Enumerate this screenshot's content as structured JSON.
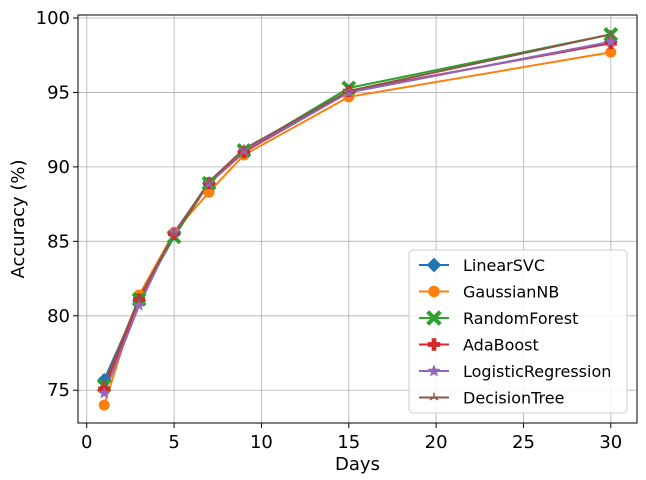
{
  "chart_data": {
    "type": "line",
    "xlabel": "Days",
    "ylabel": "Accuracy (%)",
    "xlim": [
      -0.5,
      31.5
    ],
    "ylim": [
      72.8,
      100.2
    ],
    "xticks": [
      0,
      5,
      10,
      15,
      20,
      25,
      30
    ],
    "yticks": [
      75,
      80,
      85,
      90,
      95,
      100
    ],
    "grid": true,
    "legend_position": "lower-right",
    "x": [
      1,
      3,
      5,
      7,
      9,
      15,
      30
    ],
    "series": [
      {
        "name": "LinearSVC",
        "color": "#1f77b4",
        "marker": "diamond",
        "values": [
          75.7,
          81.0,
          85.5,
          88.9,
          91.0,
          95.0,
          98.4
        ]
      },
      {
        "name": "GaussianNB",
        "color": "#ff7f0e",
        "marker": "circle",
        "values": [
          74.0,
          81.4,
          85.6,
          88.3,
          90.8,
          94.7,
          97.7
        ]
      },
      {
        "name": "RandomForest",
        "color": "#2ca02c",
        "marker": "x-filled",
        "values": [
          75.3,
          81.1,
          85.3,
          88.9,
          91.1,
          95.3,
          98.9
        ]
      },
      {
        "name": "AdaBoost",
        "color": "#d62728",
        "marker": "plus-filled",
        "values": [
          75.1,
          81.1,
          85.5,
          88.9,
          91.0,
          95.1,
          98.3
        ]
      },
      {
        "name": "LogisticRegression",
        "color": "#9467bd",
        "marker": "star",
        "values": [
          74.8,
          80.7,
          85.6,
          88.9,
          91.1,
          95.0,
          98.4
        ]
      },
      {
        "name": "DecisionTree",
        "color": "#8c564b",
        "marker": "tri",
        "values": [
          75.4,
          81.2,
          85.5,
          89.0,
          91.2,
          95.1,
          98.9
        ]
      }
    ]
  }
}
